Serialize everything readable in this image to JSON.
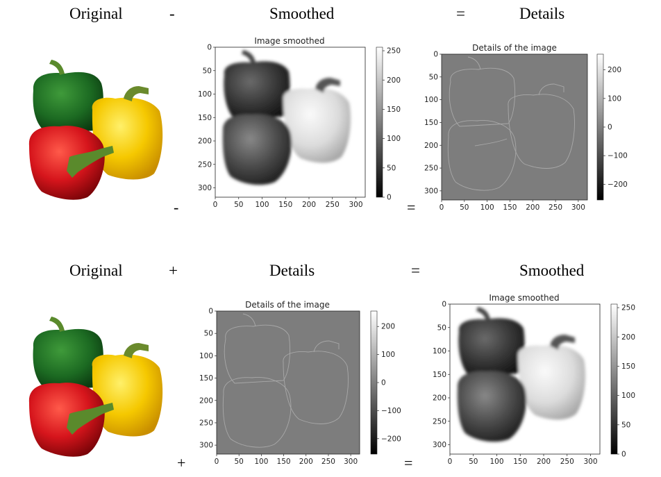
{
  "row1": {
    "h_original": "Original",
    "op1": "-",
    "h_second": "Smoothed",
    "op2": "=",
    "h_third": "Details",
    "op_small1": "-",
    "op_small2": "="
  },
  "row2": {
    "h_original": "Original",
    "op1": "+",
    "h_second": "Details",
    "op2": "=",
    "h_third": "Smoothed",
    "op_small1": "+",
    "op_small2": "="
  },
  "plots": {
    "smoothed_title": "Image smoothed",
    "details_title": "Details of the image",
    "axis_ticks": [
      "0",
      "50",
      "100",
      "150",
      "200",
      "250",
      "300"
    ],
    "smoothed_colorbar": [
      "0",
      "50",
      "100",
      "150",
      "200",
      "250"
    ],
    "details_colorbar": [
      "−200",
      "−100",
      "0",
      "100",
      "200"
    ]
  },
  "colors": {
    "green_pepper": "#1f6b25",
    "yellow_pepper": "#f2c500",
    "red_pepper": "#d6151c",
    "stem": "#5a8a2c",
    "details_gray": "#7d7d7d"
  }
}
